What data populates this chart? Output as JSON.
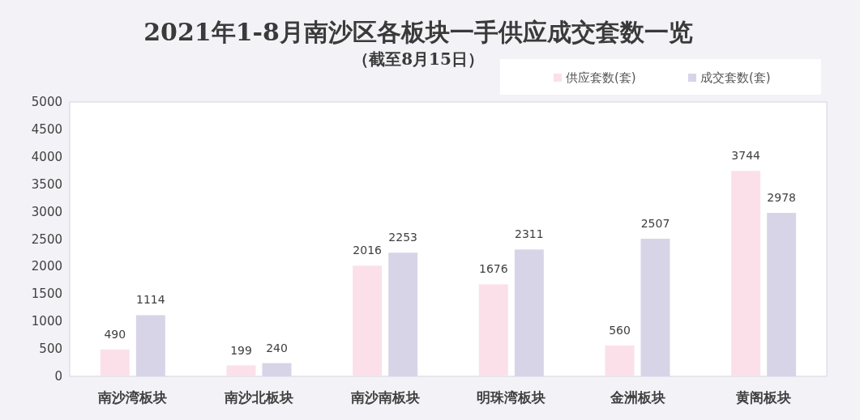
{
  "chart_data": {
    "type": "bar",
    "title": "2021年1-8月南沙区各板块一手供应成交套数一览",
    "subtitle": "（截至8月15日）",
    "categories": [
      "南沙湾板块",
      "南沙北板块",
      "南沙南板块",
      "明珠湾板块",
      "金洲板块",
      "黄阁板块"
    ],
    "series": [
      {
        "name": "供应套数(套)",
        "color": "#fbe0ea",
        "values": [
          490,
          199,
          2016,
          1676,
          560,
          3744
        ]
      },
      {
        "name": "成交套数(套)",
        "color": "#d8d4e8",
        "values": [
          1114,
          240,
          2253,
          2311,
          2507,
          2978
        ]
      }
    ],
    "ylim": [
      0,
      5000
    ],
    "yticks": [
      0,
      500,
      1000,
      1500,
      2000,
      2500,
      3000,
      3500,
      4000,
      4500,
      5000
    ],
    "data_labels": true,
    "legend": "top right"
  }
}
